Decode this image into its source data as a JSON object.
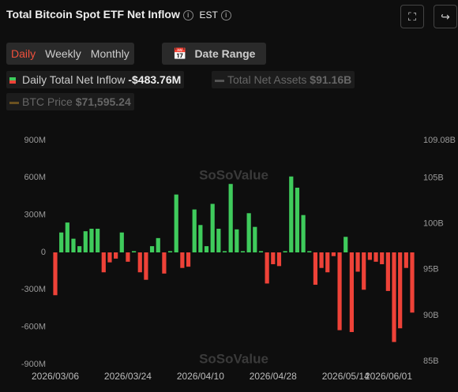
{
  "header": {
    "title": "Total Bitcoin Spot ETF Net Inflow",
    "timezone": "EST"
  },
  "tabs": [
    "Daily",
    "Weekly",
    "Monthly"
  ],
  "date_range": "Date Range",
  "legend": [
    {
      "name": "Daily Total Net Inflow",
      "value": "-$483.76M"
    },
    {
      "name": "Total Net Assets",
      "value": "$91.16B"
    },
    {
      "name": "BTC Price",
      "value": "$71,595.24"
    }
  ],
  "watermark": "SoSoValue",
  "chart_data": {
    "type": "bar",
    "categories": [
      "2026/03/06",
      null,
      null,
      null,
      null,
      null,
      null,
      null,
      null,
      null,
      null,
      null,
      "2026/03/24",
      null,
      null,
      null,
      null,
      null,
      null,
      null,
      null,
      null,
      null,
      null,
      "2026/04/10",
      null,
      null,
      null,
      null,
      null,
      null,
      null,
      null,
      null,
      null,
      null,
      "2026/04/28",
      null,
      null,
      null,
      null,
      null,
      null,
      null,
      null,
      null,
      null,
      null,
      "2026/05/14",
      null,
      null,
      null,
      null,
      null,
      null,
      null,
      null,
      null,
      null,
      "2026/06/01"
    ],
    "series": [
      {
        "name": "Daily Total Net Inflow",
        "values": [
          -344,
          160,
          240,
          110,
          50,
          170,
          190,
          190,
          -160,
          -80,
          -50,
          160,
          -75,
          10,
          -160,
          -220,
          50,
          115,
          -170,
          10,
          465,
          -125,
          -115,
          345,
          220,
          50,
          390,
          190,
          10,
          550,
          185,
          10,
          315,
          205,
          10,
          -250,
          -95,
          -110,
          10,
          610,
          520,
          300,
          10,
          -260,
          -125,
          -160,
          -30,
          -625,
          125,
          -640,
          -155,
          -300,
          -60,
          -75,
          -95,
          -310,
          -720,
          -610,
          -125,
          -483.76
        ]
      }
    ],
    "positive_color": "#3fcb5c",
    "negative_color": "#ee4238",
    "ylim": [
      -900,
      900
    ],
    "yticks": [
      {
        "value": -900,
        "label": "-900M"
      },
      {
        "value": -600,
        "label": "-600M"
      },
      {
        "value": -300,
        "label": "-300M"
      },
      0,
      {
        "value": 300,
        "label": "300M"
      },
      {
        "value": 600,
        "label": "600M"
      },
      {
        "value": 900,
        "label": "900M"
      }
    ],
    "y2lim": [
      84.66,
      109.08
    ],
    "y2ticks": [
      {
        "value": 85,
        "label": "85B"
      },
      {
        "value": 90,
        "label": "90B"
      },
      {
        "value": 95,
        "label": "95B"
      },
      {
        "value": 100,
        "label": "100B"
      },
      {
        "value": 105,
        "label": "105B"
      },
      {
        "value": 109.08,
        "label": "109.08B"
      }
    ]
  }
}
